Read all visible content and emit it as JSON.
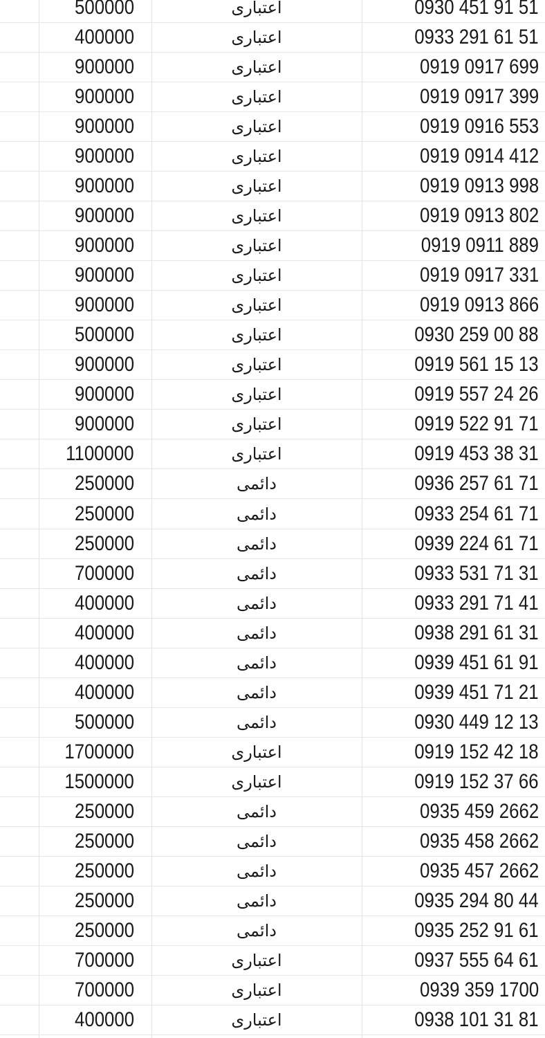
{
  "rows": [
    {
      "price": "500000",
      "type": "اعتباری",
      "phone": "0930 451 91 51"
    },
    {
      "price": "400000",
      "type": "اعتباری",
      "phone": "0933 291 61 51"
    },
    {
      "price": "900000",
      "type": "اعتباری",
      "phone": "0919 0917 699"
    },
    {
      "price": "900000",
      "type": "اعتباری",
      "phone": "0919 0917 399"
    },
    {
      "price": "900000",
      "type": "اعتباری",
      "phone": "0919 0916 553"
    },
    {
      "price": "900000",
      "type": "اعتباری",
      "phone": "0919 0914 412"
    },
    {
      "price": "900000",
      "type": "اعتباری",
      "phone": "0919 0913 998"
    },
    {
      "price": "900000",
      "type": "اعتباری",
      "phone": "0919 0913 802"
    },
    {
      "price": "900000",
      "type": "اعتباری",
      "phone": "0919 0911 889"
    },
    {
      "price": "900000",
      "type": "اعتباری",
      "phone": "0919 0917 331"
    },
    {
      "price": "900000",
      "type": "اعتباری",
      "phone": "0919 0913 866"
    },
    {
      "price": "500000",
      "type": "اعتباری",
      "phone": "0930 259 00 88"
    },
    {
      "price": "900000",
      "type": "اعتباری",
      "phone": "0919 561 15 13"
    },
    {
      "price": "900000",
      "type": "اعتباری",
      "phone": "0919 557 24 26"
    },
    {
      "price": "900000",
      "type": "اعتباری",
      "phone": "0919 522 91 71"
    },
    {
      "price": "1100000",
      "type": "اعتباری",
      "phone": "0919 453 38 31"
    },
    {
      "price": "250000",
      "type": "دائمی",
      "phone": "0936 257 61 71"
    },
    {
      "price": "250000",
      "type": "دائمی",
      "phone": "0933 254 61 71"
    },
    {
      "price": "250000",
      "type": "دائمی",
      "phone": "0939 224 61 71"
    },
    {
      "price": "700000",
      "type": "دائمی",
      "phone": "0933 531 71 31"
    },
    {
      "price": "400000",
      "type": "دائمی",
      "phone": "0933 291 71 41"
    },
    {
      "price": "400000",
      "type": "دائمی",
      "phone": "0938 291 61 31"
    },
    {
      "price": "400000",
      "type": "دائمی",
      "phone": "0939 451 61 91"
    },
    {
      "price": "400000",
      "type": "دائمی",
      "phone": "0939 451 71 21"
    },
    {
      "price": "500000",
      "type": "دائمی",
      "phone": "0930 449 12 13"
    },
    {
      "price": "1700000",
      "type": "اعتباری",
      "phone": "0919 152 42 18"
    },
    {
      "price": "1500000",
      "type": "اعتباری",
      "phone": "0919 152 37 66"
    },
    {
      "price": "250000",
      "type": "دائمی",
      "phone": "0935 459 2662"
    },
    {
      "price": "250000",
      "type": "دائمی",
      "phone": "0935 458 2662"
    },
    {
      "price": "250000",
      "type": "دائمی",
      "phone": "0935 457 2662"
    },
    {
      "price": "250000",
      "type": "دائمی",
      "phone": "0935 294 80 44"
    },
    {
      "price": "250000",
      "type": "دائمی",
      "phone": "0935 252 91 61"
    },
    {
      "price": "700000",
      "type": "اعتباری",
      "phone": "0937 555 64 61"
    },
    {
      "price": "700000",
      "type": "اعتباری",
      "phone": "0939 359 1700"
    },
    {
      "price": "400000",
      "type": "اعتباری",
      "phone": "0938 101 31 81"
    }
  ]
}
